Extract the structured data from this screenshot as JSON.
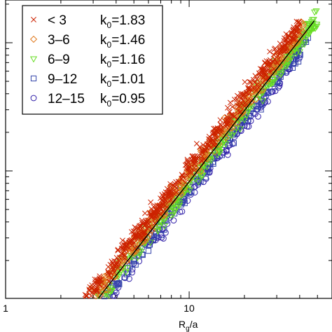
{
  "chart_data": {
    "type": "scatter",
    "title": "",
    "xlabel": {
      "main": "R",
      "sub": "g",
      "rest": "/a"
    },
    "ylabel": "",
    "x_scale": "log",
    "y_scale": "log",
    "xlim": [
      1,
      60
    ],
    "x_ticks": [
      {
        "value": 1,
        "label": "1"
      },
      {
        "value": 10,
        "label": "10"
      }
    ],
    "grid": false,
    "legend_position": "top-left",
    "fit_line": {
      "x": [
        3.2,
        48
      ],
      "rel_y": [
        0.0,
        0.93
      ],
      "color": "#000000"
    },
    "series": [
      {
        "name": "< 3",
        "k_main": "k",
        "k_sub": "0",
        "k_value": "=1.83",
        "marker": "x",
        "color": "#cc2200",
        "x_range": [
          2.5,
          40
        ],
        "band_offset": 0.045,
        "band_spread": 0.035,
        "count": 520
      },
      {
        "name": "3–6",
        "k_main": "k",
        "k_sub": "0",
        "k_value": "=1.46",
        "marker": "diamond",
        "color": "#e07a20",
        "x_range": [
          2.8,
          42
        ],
        "band_offset": 0.025,
        "band_spread": 0.035,
        "count": 380
      },
      {
        "name": "6–9",
        "k_main": "k",
        "k_sub": "0",
        "k_value": "=1.16",
        "marker": "triangle",
        "color": "#66dd22",
        "x_range": [
          3.0,
          50
        ],
        "band_offset": -0.005,
        "band_spread": 0.035,
        "count": 380
      },
      {
        "name": "9–12",
        "k_main": "k",
        "k_sub": "0",
        "k_value": "=1.01",
        "marker": "square",
        "color": "#3344aa",
        "x_range": [
          3.2,
          45
        ],
        "band_offset": -0.03,
        "band_spread": 0.03,
        "count": 200
      },
      {
        "name": "12–15",
        "k_main": "k",
        "k_sub": "0",
        "k_value": "=0.95",
        "marker": "circle",
        "color": "#3322aa",
        "x_range": [
          3.5,
          40
        ],
        "band_offset": -0.045,
        "band_spread": 0.03,
        "count": 150
      }
    ]
  }
}
